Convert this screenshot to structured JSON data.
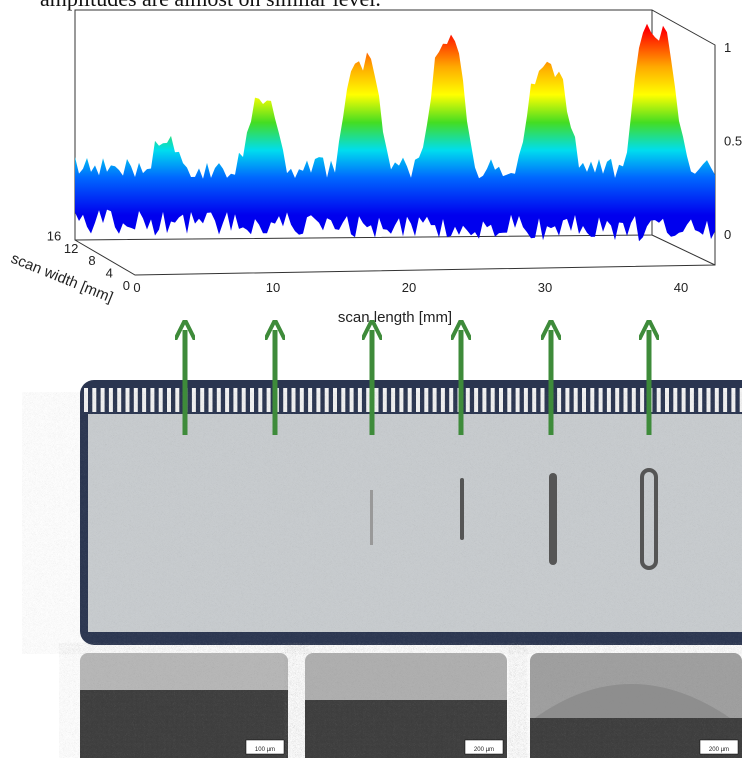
{
  "caption": "amplitudes are almost on similar level.",
  "plot": {
    "z_ticks": [
      1,
      0.5,
      0
    ],
    "x_ticks": [
      0,
      10,
      20,
      30,
      40
    ],
    "y_ticks": [
      16,
      12,
      8,
      4,
      0
    ],
    "x_label": "scan length [mm]",
    "y_label": "scan width [mm]"
  },
  "micrographs": [
    {
      "scale": "100 µm"
    },
    {
      "scale": "200 µm"
    },
    {
      "scale": "200 µm"
    }
  ]
}
